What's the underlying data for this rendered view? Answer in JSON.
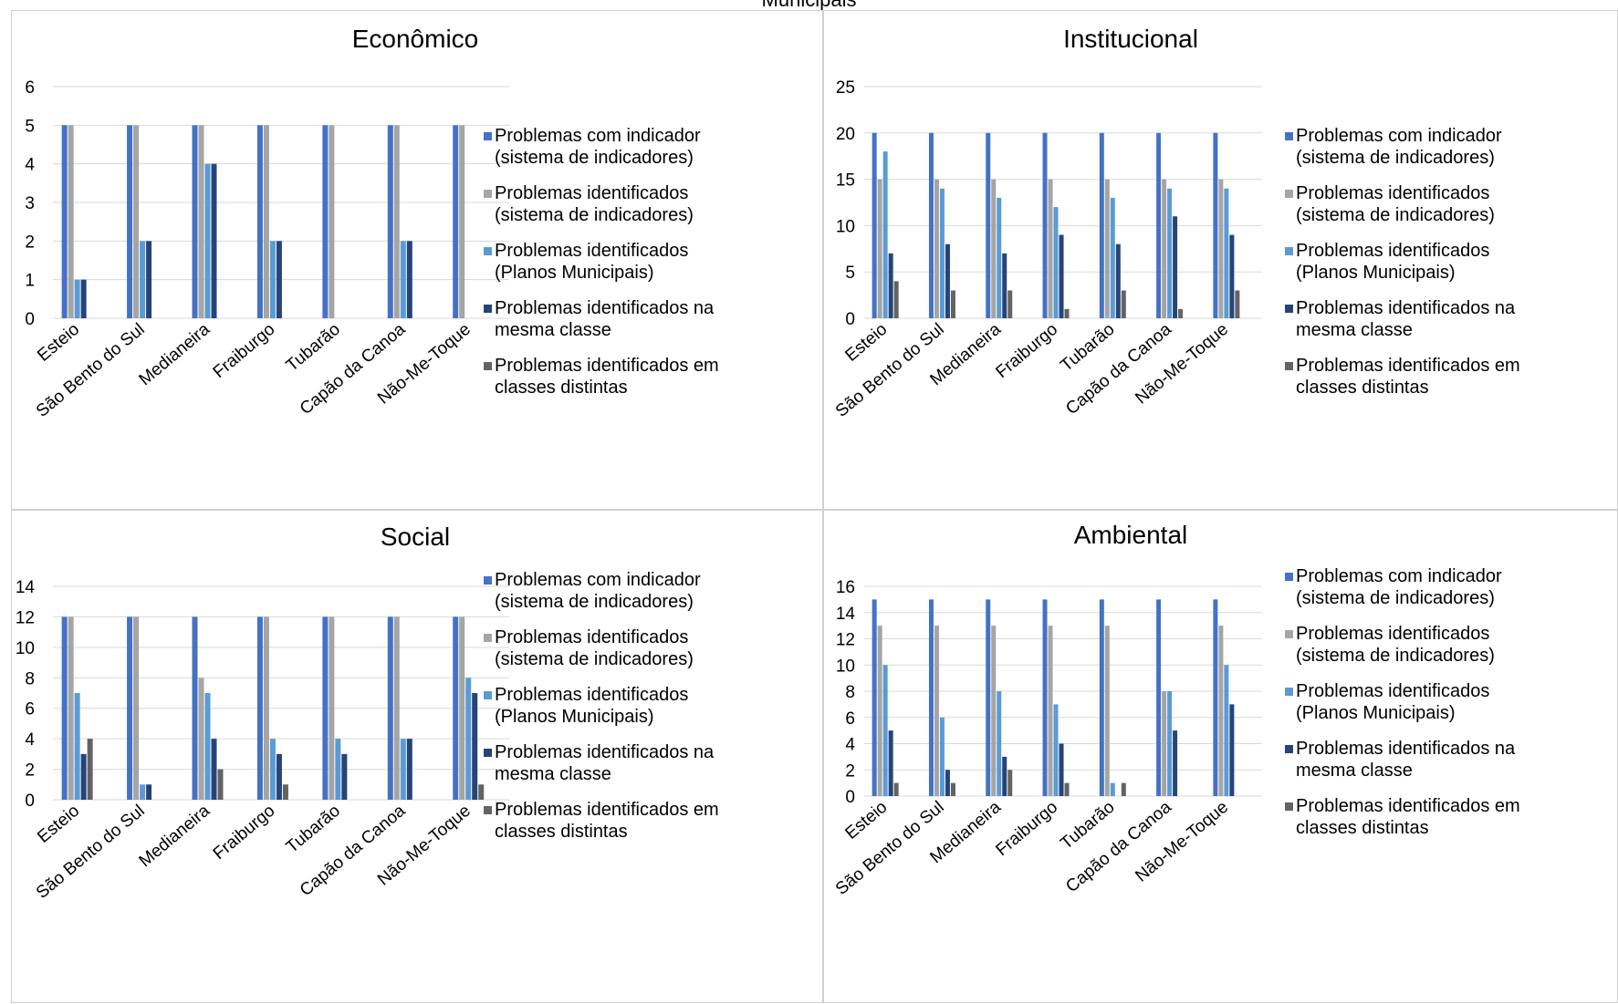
{
  "page_title": "Municipais",
  "colors": {
    "series": [
      "#4472C4",
      "#A5A5A5",
      "#5B9BD5",
      "#264478",
      "#636363"
    ],
    "grid": "#D9D9D9"
  },
  "chart_data": [
    {
      "type": "bar",
      "title": "Econômico",
      "categories": [
        "Esteio",
        "São Bento do Sul",
        "Medianeira",
        "Fraiburgo",
        "Tubarão",
        "Capão da Canoa",
        "Não-Me-Toque"
      ],
      "ylim": [
        0,
        6
      ],
      "yticks": [
        0,
        1,
        2,
        3,
        4,
        5,
        6
      ],
      "grid": true,
      "legend_position": "right",
      "series": [
        {
          "name": "Problemas com indicador (sistema de indicadores)",
          "values": [
            5,
            5,
            5,
            5,
            5,
            5,
            5
          ]
        },
        {
          "name": "Problemas identificados (sistema de indicadores)",
          "values": [
            5,
            5,
            5,
            5,
            5,
            5,
            5
          ]
        },
        {
          "name": "Problemas identificados (Planos Municipais)",
          "values": [
            1,
            2,
            4,
            2,
            0,
            2,
            0
          ]
        },
        {
          "name": "Problemas identificados na mesma classe",
          "values": [
            1,
            2,
            4,
            2,
            0,
            2,
            0
          ]
        },
        {
          "name": "Problemas identificados em classes distintas",
          "values": [
            0,
            0,
            0,
            0,
            0,
            0,
            0
          ]
        }
      ]
    },
    {
      "type": "bar",
      "title": "Institucional",
      "categories": [
        "Esteio",
        "São Bento do Sul",
        "Medianeira",
        "Fraiburgo",
        "Tubarão",
        "Capão da Canoa",
        "Não-Me-Toque"
      ],
      "ylim": [
        0,
        25
      ],
      "yticks": [
        0,
        5,
        10,
        15,
        20,
        25
      ],
      "grid": true,
      "legend_position": "right",
      "series": [
        {
          "name": "Problemas com indicador (sistema de indicadores)",
          "values": [
            20,
            20,
            20,
            20,
            20,
            20,
            20
          ]
        },
        {
          "name": "Problemas identificados (sistema de indicadores)",
          "values": [
            15,
            15,
            15,
            15,
            15,
            15,
            15
          ]
        },
        {
          "name": "Problemas identificados (Planos Municipais)",
          "values": [
            18,
            14,
            13,
            12,
            13,
            14,
            14
          ]
        },
        {
          "name": "Problemas identificados na mesma classe",
          "values": [
            7,
            8,
            7,
            9,
            8,
            11,
            9
          ]
        },
        {
          "name": "Problemas identificados em classes distintas",
          "values": [
            4,
            3,
            3,
            1,
            3,
            1,
            3
          ]
        }
      ]
    },
    {
      "type": "bar",
      "title": "Social",
      "categories": [
        "Esteio",
        "São Bento do Sul",
        "Medianeira",
        "Fraiburgo",
        "Tubarão",
        "Capão da Canoa",
        "Não-Me-Toque"
      ],
      "ylim": [
        0,
        14
      ],
      "yticks": [
        0,
        2,
        4,
        6,
        8,
        10,
        12,
        14
      ],
      "grid": true,
      "legend_position": "right",
      "series": [
        {
          "name": "Problemas com indicador (sistema de indicadores)",
          "values": [
            12,
            12,
            12,
            12,
            12,
            12,
            12
          ]
        },
        {
          "name": "Problemas identificados (sistema de indicadores)",
          "values": [
            12,
            12,
            8,
            12,
            12,
            12,
            12
          ]
        },
        {
          "name": "Problemas identificados (Planos Municipais)",
          "values": [
            7,
            1,
            7,
            4,
            4,
            4,
            8
          ]
        },
        {
          "name": "Problemas identificados na mesma classe",
          "values": [
            3,
            1,
            4,
            3,
            3,
            4,
            7
          ]
        },
        {
          "name": "Problemas identificados em classes distintas",
          "values": [
            4,
            0,
            2,
            1,
            0,
            0,
            1
          ]
        }
      ]
    },
    {
      "type": "bar",
      "title": "Ambiental",
      "categories": [
        "Esteio",
        "São Bento do Sul",
        "Medianeira",
        "Fraiburgo",
        "Tubarão",
        "Capão da Canoa",
        "Não-Me-Toque"
      ],
      "ylim": [
        0,
        16
      ],
      "yticks": [
        0,
        2,
        4,
        6,
        8,
        10,
        12,
        14,
        16
      ],
      "grid": true,
      "legend_position": "right",
      "series": [
        {
          "name": "Problemas com indicador (sistema de indicadores)",
          "values": [
            15,
            15,
            15,
            15,
            15,
            15,
            15
          ]
        },
        {
          "name": "Problemas identificados (sistema de indicadores)",
          "values": [
            13,
            13,
            13,
            13,
            13,
            8,
            13
          ]
        },
        {
          "name": "Problemas identificados (Planos Municipais)",
          "values": [
            10,
            6,
            8,
            7,
            1,
            8,
            10
          ]
        },
        {
          "name": "Problemas identificados na mesma classe",
          "values": [
            5,
            2,
            3,
            4,
            0,
            5,
            7
          ]
        },
        {
          "name": "Problemas identificados em classes distintas",
          "values": [
            1,
            1,
            2,
            1,
            1,
            0,
            0
          ]
        }
      ]
    }
  ]
}
